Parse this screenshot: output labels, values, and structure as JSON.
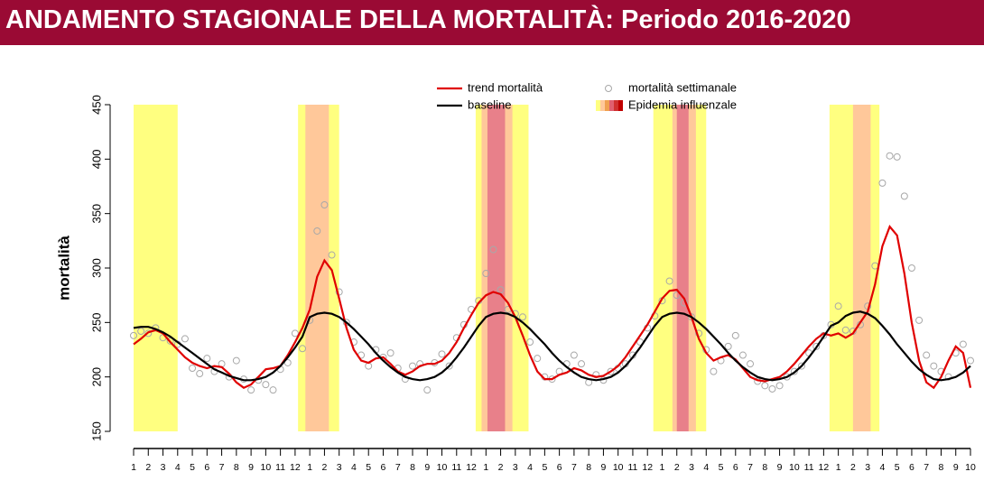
{
  "chart_data": {
    "type": "line",
    "title": "ANDAMENTO STAGIONALE DELLA MORTALITÀ: Periodo 2016-2020",
    "ylabel": "mortalità",
    "x": [
      0,
      0.5,
      1,
      1.5,
      2,
      2.5,
      3,
      3.5,
      4,
      4.5,
      5,
      5.5,
      6,
      6.5,
      7,
      7.5,
      8,
      8.5,
      9,
      9.5,
      10,
      10.5,
      11,
      11.5,
      12,
      12.5,
      13,
      13.5,
      14,
      14.5,
      15,
      15.5,
      16,
      16.5,
      17,
      17.5,
      18,
      18.5,
      19,
      19.5,
      20,
      20.5,
      21,
      21.5,
      22,
      22.5,
      23,
      23.5,
      24,
      24.5,
      25,
      25.5,
      26,
      26.5,
      27,
      27.5,
      28,
      28.5,
      29,
      29.5,
      30,
      30.5,
      31,
      31.5,
      32,
      32.5,
      33,
      33.5,
      34,
      34.5,
      35,
      35.5,
      36,
      36.5,
      37,
      37.5,
      38,
      38.5,
      39,
      39.5,
      40,
      40.5,
      41,
      41.5,
      42,
      42.5,
      43,
      43.5,
      44,
      44.5,
      45,
      45.5,
      46,
      46.5,
      47,
      47.5,
      48,
      48.5,
      49,
      49.5,
      50,
      50.5,
      51,
      51.5,
      52,
      52.5,
      53,
      53.5,
      54,
      54.5,
      55,
      55.5,
      56,
      56.5,
      57
    ],
    "series": [
      {
        "name": "trend mortalità",
        "type": "line",
        "color": "#e00000",
        "values": [
          230,
          235,
          241,
          243,
          240,
          232,
          225,
          218,
          213,
          210,
          208,
          210,
          209,
          203,
          195,
          190,
          193,
          200,
          207,
          208,
          210,
          220,
          232,
          245,
          262,
          292,
          307,
          298,
          272,
          245,
          225,
          215,
          213,
          217,
          218,
          212,
          205,
          202,
          205,
          210,
          212,
          212,
          215,
          222,
          232,
          245,
          257,
          268,
          275,
          278,
          276,
          268,
          255,
          238,
          220,
          205,
          198,
          198,
          202,
          204,
          208,
          206,
          202,
          200,
          201,
          205,
          210,
          218,
          228,
          238,
          248,
          260,
          272,
          279,
          280,
          272,
          255,
          235,
          222,
          215,
          218,
          220,
          216,
          208,
          200,
          197,
          196,
          198,
          200,
          205,
          212,
          220,
          228,
          235,
          240,
          238,
          240,
          236,
          240,
          250,
          260,
          285,
          320,
          338,
          330,
          295,
          250,
          215,
          195,
          190,
          200,
          215,
          228,
          222,
          190
        ]
      },
      {
        "name": "baseline",
        "type": "line",
        "color": "#000000",
        "values": [
          245,
          246,
          246,
          244,
          241,
          237,
          232,
          227,
          222,
          217,
          212,
          207,
          204,
          201,
          199,
          197,
          197,
          198,
          200,
          204,
          210,
          218,
          227,
          237,
          255,
          258,
          259,
          258,
          255,
          250,
          244,
          237,
          230,
          222,
          215,
          209,
          204,
          200,
          198,
          197,
          198,
          200,
          204,
          210,
          218,
          227,
          237,
          247,
          255,
          258,
          259,
          258,
          255,
          250,
          244,
          237,
          230,
          222,
          215,
          209,
          204,
          200,
          198,
          197,
          198,
          200,
          204,
          210,
          218,
          227,
          237,
          247,
          255,
          258,
          259,
          258,
          255,
          250,
          244,
          237,
          230,
          222,
          215,
          209,
          204,
          200,
          198,
          197,
          198,
          200,
          204,
          210,
          218,
          227,
          237,
          247,
          250,
          256,
          259,
          260,
          258,
          254,
          247,
          239,
          230,
          222,
          214,
          207,
          202,
          198,
          197,
          198,
          200,
          204,
          210
        ]
      },
      {
        "name": "mortalità settimanale",
        "type": "scatter",
        "color": "#a8a8a8",
        "values": [
          238,
          242,
          240,
          245,
          236,
          233,
          230,
          235,
          208,
          203,
          217,
          205,
          212,
          200,
          215,
          198,
          188,
          197,
          193,
          188,
          207,
          213,
          240,
          226,
          252,
          334,
          358,
          312,
          278,
          250,
          232,
          220,
          210,
          225,
          218,
          222,
          208,
          198,
          210,
          212,
          188,
          213,
          221,
          210,
          236,
          248,
          262,
          270,
          295,
          317,
          280,
          262,
          258,
          255,
          232,
          217,
          200,
          198,
          205,
          212,
          220,
          212,
          195,
          202,
          197,
          205,
          208,
          212,
          220,
          232,
          245,
          256,
          270,
          288,
          275,
          268,
          255,
          240,
          225,
          205,
          215,
          228,
          238,
          220,
          212,
          196,
          192,
          189,
          192,
          200,
          205,
          210,
          222,
          228,
          238,
          248,
          265,
          243,
          242,
          248,
          265,
          302,
          378,
          403,
          402,
          366,
          300,
          252,
          220,
          210,
          205,
          200,
          222,
          230,
          215
        ]
      }
    ],
    "bands": {
      "name": "Epidemia influenzale",
      "periods": [
        {
          "start": 0,
          "end": 3,
          "color": "#ffff80"
        },
        {
          "start": 11.2,
          "end": 14,
          "color": "#ffff80"
        },
        {
          "start": 11.7,
          "end": 13.3,
          "color": "#ffc89a"
        },
        {
          "start": 23.3,
          "end": 26.9,
          "color": "#ffff80"
        },
        {
          "start": 23.7,
          "end": 25.8,
          "color": "#ffc89a"
        },
        {
          "start": 24.1,
          "end": 25.3,
          "color": "#e8808a"
        },
        {
          "start": 35.4,
          "end": 39,
          "color": "#ffff80"
        },
        {
          "start": 36.7,
          "end": 38.3,
          "color": "#ffc89a"
        },
        {
          "start": 37,
          "end": 37.8,
          "color": "#e8808a"
        },
        {
          "start": 47.4,
          "end": 50.8,
          "color": "#ffff80"
        },
        {
          "start": 49,
          "end": 50.2,
          "color": "#ffc89a"
        }
      ]
    },
    "xlim": [
      0,
      57
    ],
    "ylim": [
      150,
      450
    ],
    "yticks": [
      150,
      200,
      250,
      300,
      350,
      400,
      450
    ],
    "xticks": [
      {
        "value": 0,
        "label": "1"
      },
      {
        "value": 1,
        "label": "2"
      },
      {
        "value": 2,
        "label": "3"
      },
      {
        "value": 3,
        "label": "4"
      },
      {
        "value": 4,
        "label": "5"
      },
      {
        "value": 5,
        "label": "6"
      },
      {
        "value": 6,
        "label": "7"
      },
      {
        "value": 7,
        "label": "8"
      },
      {
        "value": 8,
        "label": "9"
      },
      {
        "value": 9,
        "label": "10"
      },
      {
        "value": 10,
        "label": "11"
      },
      {
        "value": 11,
        "label": "12"
      },
      {
        "value": 12,
        "label": "1"
      },
      {
        "value": 13,
        "label": "2"
      },
      {
        "value": 14,
        "label": "3"
      },
      {
        "value": 15,
        "label": "4"
      },
      {
        "value": 16,
        "label": "5"
      },
      {
        "value": 17,
        "label": "6"
      },
      {
        "value": 18,
        "label": "7"
      },
      {
        "value": 19,
        "label": "8"
      },
      {
        "value": 20,
        "label": "9"
      },
      {
        "value": 21,
        "label": "10"
      },
      {
        "value": 22,
        "label": "11"
      },
      {
        "value": 23,
        "label": "12"
      },
      {
        "value": 24,
        "label": "1"
      },
      {
        "value": 25,
        "label": "2"
      },
      {
        "value": 26,
        "label": "3"
      },
      {
        "value": 27,
        "label": "4"
      },
      {
        "value": 28,
        "label": "5"
      },
      {
        "value": 29,
        "label": "6"
      },
      {
        "value": 30,
        "label": "7"
      },
      {
        "value": 31,
        "label": "8"
      },
      {
        "value": 32,
        "label": "9"
      },
      {
        "value": 33,
        "label": "10"
      },
      {
        "value": 34,
        "label": "11"
      },
      {
        "value": 35,
        "label": "12"
      },
      {
        "value": 36,
        "label": "1"
      },
      {
        "value": 37,
        "label": "2"
      },
      {
        "value": 38,
        "label": "3"
      },
      {
        "value": 39,
        "label": "4"
      },
      {
        "value": 40,
        "label": "5"
      },
      {
        "value": 41,
        "label": "6"
      },
      {
        "value": 42,
        "label": "7"
      },
      {
        "value": 43,
        "label": "8"
      },
      {
        "value": 44,
        "label": "9"
      },
      {
        "value": 45,
        "label": "10"
      },
      {
        "value": 46,
        "label": "11"
      },
      {
        "value": 47,
        "label": "12"
      },
      {
        "value": 48,
        "label": "1"
      },
      {
        "value": 49,
        "label": "2"
      },
      {
        "value": 50,
        "label": "3"
      },
      {
        "value": 51,
        "label": "4"
      },
      {
        "value": 52,
        "label": "5"
      },
      {
        "value": 53,
        "label": "6"
      },
      {
        "value": 54,
        "label": "7"
      },
      {
        "value": 55,
        "label": "8"
      },
      {
        "value": 56,
        "label": "9"
      },
      {
        "value": 57,
        "label": "10"
      }
    ]
  }
}
